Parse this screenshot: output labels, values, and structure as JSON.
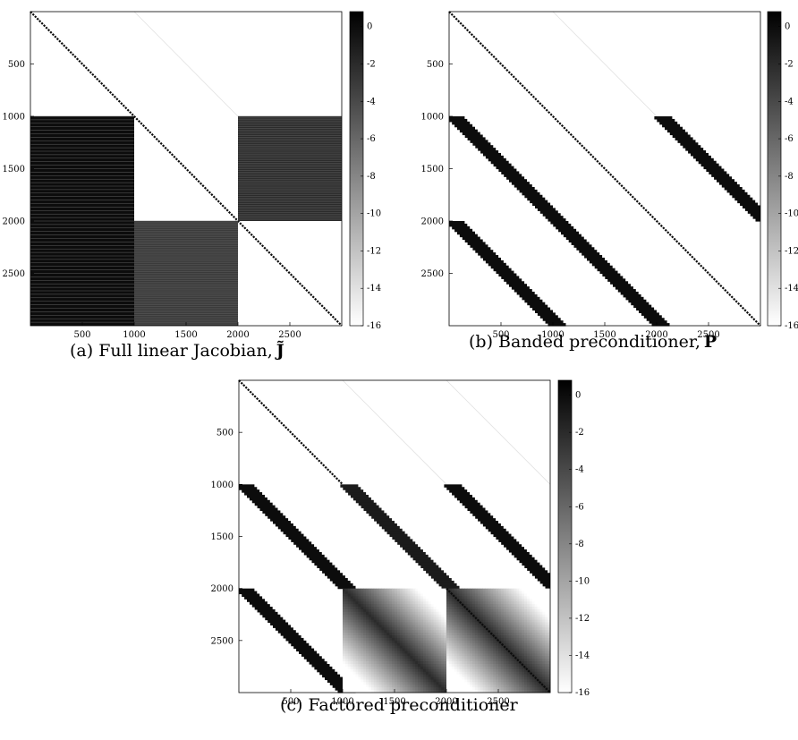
{
  "captions": {
    "a": {
      "text": "(a) Full linear Jacobian,",
      "symbol": "J̃"
    },
    "b": {
      "text": "(b) Banded preconditioner,",
      "symbol": "P"
    },
    "c": {
      "text": "(c) Factored preconditioner"
    }
  },
  "chart_data": [
    {
      "type": "heatmap",
      "title": "",
      "matrix_size": 3000,
      "xlim": [
        0,
        3000
      ],
      "ylim": [
        3000,
        0
      ],
      "xticks": [
        500,
        1000,
        1500,
        2000,
        2500
      ],
      "yticks": [
        500,
        1000,
        1500,
        2000,
        2500
      ],
      "colorbar": {
        "range": [
          -16,
          0.8
        ],
        "ticks": [
          0,
          -2,
          -4,
          -6,
          -8,
          -10,
          -12,
          -14,
          -16
        ],
        "colormap": "gray (black = high, white = low)"
      },
      "grid": false,
      "nonzero_regions": [
        {
          "kind": "diagonal",
          "rows": [
            0,
            3000
          ],
          "value": 0
        },
        {
          "kind": "diagonal_offset",
          "rows": [
            0,
            1000
          ],
          "col_offset": 1000,
          "value": -14
        },
        {
          "kind": "block",
          "rows": [
            1000,
            3000
          ],
          "cols": [
            0,
            1000
          ],
          "value": 0
        },
        {
          "kind": "block",
          "rows": [
            1000,
            2000
          ],
          "cols": [
            2000,
            3000
          ],
          "value": -2
        },
        {
          "kind": "block",
          "rows": [
            2000,
            3000
          ],
          "cols": [
            1000,
            2000
          ],
          "value": -3
        }
      ]
    },
    {
      "type": "heatmap",
      "title": "",
      "matrix_size": 3000,
      "xlim": [
        0,
        3000
      ],
      "ylim": [
        3000,
        0
      ],
      "xticks": [
        500,
        1000,
        1500,
        2000,
        2500
      ],
      "yticks": [
        500,
        1000,
        1500,
        2000,
        2500
      ],
      "colorbar": {
        "range": [
          -16,
          0.8
        ],
        "ticks": [
          0,
          -2,
          -4,
          -6,
          -8,
          -10,
          -12,
          -14,
          -16
        ],
        "colormap": "gray (black = high, white = low)"
      },
      "grid": false,
      "nonzero_regions": [
        {
          "kind": "diagonal",
          "rows": [
            0,
            3000
          ],
          "value": 0
        },
        {
          "kind": "diagonal_offset",
          "rows": [
            0,
            1000
          ],
          "col_offset": 1000,
          "value": -14
        },
        {
          "kind": "band",
          "rows": [
            1000,
            2000
          ],
          "col_offset": -1000,
          "bandwidth": 150,
          "value": 0
        },
        {
          "kind": "band",
          "rows": [
            2000,
            3000
          ],
          "col_offset": -2000,
          "bandwidth": 150,
          "value": 0
        },
        {
          "kind": "band",
          "rows": [
            2000,
            3000
          ],
          "col_offset": -1000,
          "bandwidth": 150,
          "value": 0
        },
        {
          "kind": "band",
          "rows": [
            1000,
            2000
          ],
          "col_offset": 1000,
          "bandwidth": 150,
          "value": 0
        }
      ]
    },
    {
      "type": "heatmap",
      "title": "",
      "matrix_size": 3000,
      "xlim": [
        0,
        3000
      ],
      "ylim": [
        3000,
        0
      ],
      "xticks": [
        500,
        1000,
        1500,
        2000,
        2500
      ],
      "yticks": [
        500,
        1000,
        1500,
        2000,
        2500
      ],
      "colorbar": {
        "range": [
          -16,
          0.8
        ],
        "ticks": [
          0,
          -2,
          -4,
          -6,
          -8,
          -10,
          -12,
          -14,
          -16
        ],
        "colormap": "gray (black = high, white = low)"
      },
      "grid": false,
      "nonzero_regions": [
        {
          "kind": "diagonal",
          "rows": [
            0,
            1000
          ],
          "value": 0
        },
        {
          "kind": "diagonal_offset",
          "rows": [
            0,
            1000
          ],
          "col_offset": 1000,
          "value": -14
        },
        {
          "kind": "diagonal_offset",
          "rows": [
            0,
            1000
          ],
          "col_offset": 2000,
          "value": -14
        },
        {
          "kind": "band",
          "rows": [
            1000,
            2000
          ],
          "col_offset": -1000,
          "bandwidth": 150,
          "value": 0
        },
        {
          "kind": "band",
          "rows": [
            1000,
            2000
          ],
          "col_offset": 0,
          "bandwidth": 150,
          "value": -1
        },
        {
          "kind": "band",
          "rows": [
            1000,
            2000
          ],
          "col_offset": 1000,
          "bandwidth": 150,
          "value": 0
        },
        {
          "kind": "band",
          "rows": [
            2000,
            3000
          ],
          "col_offset": -2000,
          "bandwidth": 150,
          "value": 0
        },
        {
          "kind": "block_gradient",
          "rows": [
            2000,
            3000
          ],
          "cols": [
            1000,
            2000
          ],
          "value_near": -2,
          "value_far": -16
        },
        {
          "kind": "block_gradient",
          "rows": [
            2000,
            3000
          ],
          "cols": [
            2000,
            3000
          ],
          "value_near": -2,
          "value_far": -16
        },
        {
          "kind": "diagonal",
          "rows": [
            2000,
            3000
          ],
          "value": 0
        }
      ]
    }
  ]
}
